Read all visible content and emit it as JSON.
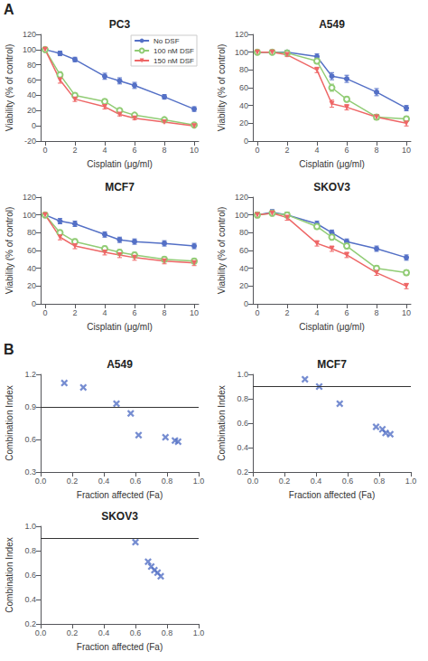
{
  "chart_data": [
    {
      "type": "line",
      "title": "PC3",
      "xlabel": "Cisplatin (μg/ml)",
      "ylabel": "Viability (% of control)",
      "x": [
        0,
        1,
        2,
        4,
        5,
        6,
        8,
        10
      ],
      "series": [
        {
          "name": "No DSF",
          "marker": "circle",
          "values": [
            100,
            95,
            87,
            65,
            59,
            53,
            38,
            22
          ],
          "errors": [
            2,
            3,
            3,
            4,
            4,
            4,
            3,
            3
          ]
        },
        {
          "name": "100 nM DSF",
          "marker": "open circle",
          "values": [
            100,
            67,
            40,
            32,
            20,
            14,
            8,
            1
          ],
          "errors": [
            2,
            4,
            3,
            3,
            2,
            2,
            2,
            1
          ]
        },
        {
          "name": "150 nM DSF",
          "marker": "triangle-down",
          "values": [
            100,
            60,
            35,
            25,
            15,
            10,
            5,
            0
          ],
          "errors": [
            2,
            4,
            3,
            3,
            2,
            2,
            1,
            1
          ]
        }
      ],
      "xlim": [
        -0.3,
        10.3
      ],
      "xticks": [
        0,
        2,
        4,
        6,
        8,
        10
      ],
      "ylim": [
        -20,
        120
      ],
      "yticks": [
        -20,
        0,
        20,
        40,
        60,
        80,
        100,
        120
      ],
      "grid": false,
      "legend": "upper right",
      "annotation": "A"
    },
    {
      "type": "line",
      "title": "A549",
      "xlabel": "Cisplatin (μg/ml)",
      "ylabel": "Viability (% of control)",
      "x": [
        0,
        1,
        2,
        4,
        5,
        6,
        8,
        10
      ],
      "series": [
        {
          "marker": "circle",
          "values": [
            100,
            100,
            100,
            95,
            73,
            70,
            55,
            37
          ],
          "errors": [
            2,
            2,
            2,
            3,
            4,
            4,
            4,
            3
          ]
        },
        {
          "marker": "open circle",
          "values": [
            100,
            100,
            99,
            90,
            60,
            47,
            27,
            25
          ],
          "errors": [
            2,
            2,
            2,
            3,
            4,
            3,
            3,
            3
          ]
        },
        {
          "marker": "triangle-down",
          "values": [
            100,
            100,
            97,
            80,
            42,
            38,
            27,
            20
          ],
          "errors": [
            2,
            2,
            2,
            3,
            4,
            3,
            3,
            3
          ]
        }
      ],
      "xlim": [
        -0.3,
        10.3
      ],
      "xticks": [
        0,
        2,
        4,
        6,
        8,
        10
      ],
      "ylim": [
        0,
        120
      ],
      "yticks": [
        0,
        20,
        40,
        60,
        80,
        100,
        120
      ],
      "grid": false
    },
    {
      "type": "line",
      "title": "MCF7",
      "xlabel": "Cisplatin (μg/ml)",
      "ylabel": "Viability (% of control)",
      "x": [
        0,
        1,
        2,
        4,
        5,
        6,
        8,
        10
      ],
      "series": [
        {
          "marker": "circle",
          "values": [
            100,
            93,
            90,
            78,
            72,
            70,
            68,
            65
          ],
          "errors": [
            2,
            3,
            3,
            3,
            3,
            3,
            3,
            3
          ]
        },
        {
          "marker": "open circle",
          "values": [
            100,
            80,
            70,
            62,
            58,
            55,
            50,
            48
          ],
          "errors": [
            2,
            3,
            3,
            3,
            3,
            3,
            3,
            3
          ]
        },
        {
          "marker": "triangle-down",
          "values": [
            100,
            75,
            65,
            58,
            55,
            52,
            48,
            46
          ],
          "errors": [
            2,
            3,
            3,
            3,
            3,
            3,
            3,
            3
          ]
        }
      ],
      "xlim": [
        -0.3,
        10.3
      ],
      "xticks": [
        0,
        2,
        4,
        6,
        8,
        10
      ],
      "ylim": [
        0,
        120
      ],
      "yticks": [
        0,
        20,
        40,
        60,
        80,
        100,
        120
      ],
      "grid": false
    },
    {
      "type": "line",
      "title": "SKOV3",
      "xlabel": "Cisplatin (μg/ml)",
      "ylabel": "Viability (% of control)",
      "x": [
        0,
        1,
        2,
        4,
        5,
        6,
        8,
        10
      ],
      "series": [
        {
          "marker": "circle",
          "values": [
            100,
            103,
            100,
            90,
            80,
            70,
            62,
            52
          ],
          "errors": [
            3,
            3,
            3,
            3,
            3,
            3,
            3,
            3
          ]
        },
        {
          "marker": "open circle",
          "values": [
            100,
            102,
            100,
            87,
            75,
            65,
            40,
            35
          ],
          "errors": [
            3,
            3,
            3,
            3,
            3,
            3,
            3,
            3
          ]
        },
        {
          "marker": "triangle-down",
          "values": [
            100,
            102,
            97,
            68,
            62,
            55,
            35,
            20
          ],
          "errors": [
            3,
            3,
            3,
            3,
            3,
            3,
            3,
            3
          ]
        }
      ],
      "xlim": [
        -0.3,
        10.3
      ],
      "xticks": [
        0,
        2,
        4,
        6,
        8,
        10
      ],
      "ylim": [
        0,
        120
      ],
      "yticks": [
        0,
        20,
        40,
        60,
        80,
        100,
        120
      ],
      "grid": false
    },
    {
      "type": "scatter",
      "title": "A549",
      "xlabel": "Fraction affected (Fa)",
      "ylabel": "Combination Index",
      "x": [
        0.15,
        0.27,
        0.48,
        0.57,
        0.62,
        0.79,
        0.85,
        0.87
      ],
      "values": [
        1.12,
        1.08,
        0.93,
        0.84,
        0.64,
        0.62,
        0.59,
        0.58
      ],
      "marker": "x",
      "hline": 0.9,
      "xlim": [
        0,
        1
      ],
      "xticks": [
        {
          "value": 0,
          "label": "0.0"
        },
        0.2,
        0.4,
        0.6,
        0.8,
        {
          "value": 1,
          "label": "1.0"
        }
      ],
      "ylim": [
        0.3,
        1.2
      ],
      "yticks": [
        0.3,
        0.6,
        0.9,
        1.2
      ],
      "grid": false,
      "annotation": "B"
    },
    {
      "type": "scatter",
      "title": "MCF7",
      "xlabel": "Fraction affected (Fa)",
      "ylabel": "Combination Index",
      "x": [
        0.33,
        0.42,
        0.55,
        0.78,
        0.82,
        0.84,
        0.87
      ],
      "values": [
        0.96,
        0.9,
        0.76,
        0.57,
        0.55,
        0.52,
        0.51
      ],
      "marker": "x",
      "hline": 0.9,
      "xlim": [
        0,
        1
      ],
      "xticks": [
        {
          "value": 0,
          "label": "0.0"
        },
        0.2,
        0.4,
        0.6,
        0.8,
        {
          "value": 1,
          "label": "1.0"
        }
      ],
      "ylim": [
        0.2,
        1
      ],
      "yticks": [
        0.2,
        0.4,
        0.6,
        0.8,
        {
          "value": 1,
          "label": "1.0"
        }
      ],
      "grid": false
    },
    {
      "type": "scatter",
      "title": "SKOV3",
      "xlabel": "Fraction affected (Fa)",
      "ylabel": "Combination Index",
      "x": [
        0.6,
        0.68,
        0.7,
        0.72,
        0.74,
        0.76
      ],
      "values": [
        0.87,
        0.71,
        0.67,
        0.64,
        0.62,
        0.59
      ],
      "marker": "x",
      "hline": 0.9,
      "xlim": [
        0,
        1
      ],
      "xticks": [
        {
          "value": 0,
          "label": "0.0"
        },
        0.2,
        0.4,
        0.6,
        0.8,
        {
          "value": 1,
          "label": "1.0"
        }
      ],
      "ylim": [
        0.2,
        1
      ],
      "yticks": [
        0.2,
        0.4,
        0.6,
        0.8,
        {
          "value": 1,
          "label": "1.0"
        }
      ],
      "grid": false
    }
  ]
}
